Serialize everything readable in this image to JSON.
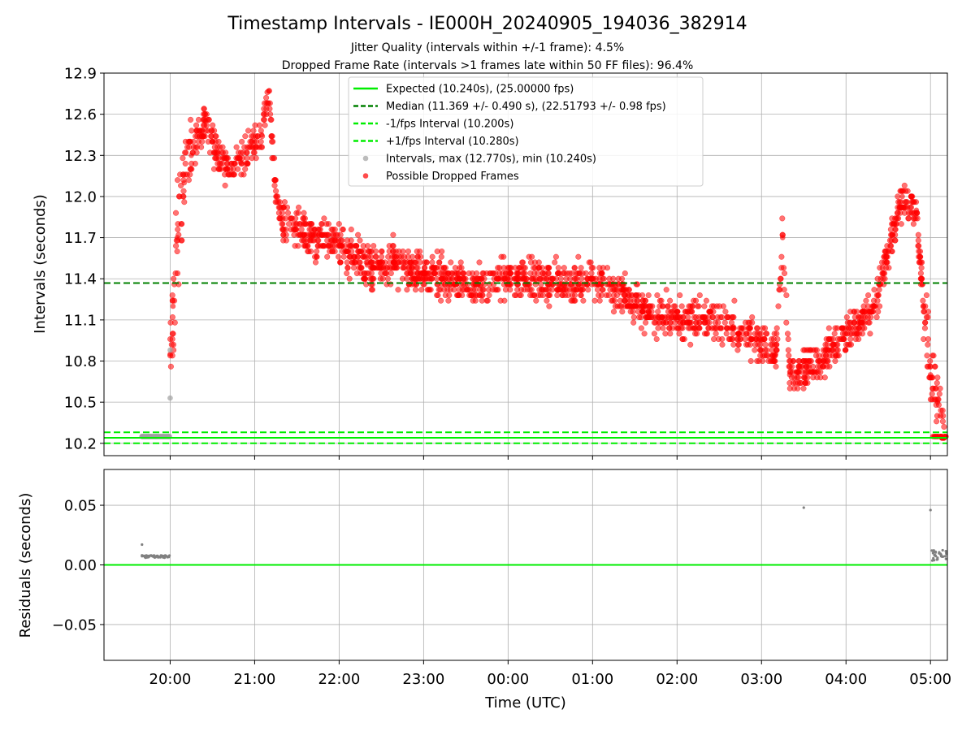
{
  "chart_data": {
    "type": "scatter",
    "title": "Timestamp Intervals - IE000H_20240905_194036_382914",
    "subtitle_1": "Jitter Quality (intervals within +/-1 frame): 4.5%",
    "subtitle_2": "Dropped Frame Rate (intervals >1 frames late within 50 FF files): 96.4%",
    "xlabel": "Time (UTC)",
    "x_ticks": [
      "20:00",
      "21:00",
      "22:00",
      "23:00",
      "00:00",
      "01:00",
      "02:00",
      "03:00",
      "04:00",
      "05:00"
    ],
    "x_range": [
      "2024-09-05 19:13",
      "2024-09-06 05:12"
    ],
    "grid": true,
    "panels": [
      {
        "name": "intervals",
        "ylabel": "Intervals (seconds)",
        "ylim": [
          10.11,
          12.9
        ],
        "y_ticks": [
          "10.2",
          "10.5",
          "10.8",
          "11.1",
          "11.4",
          "11.7",
          "12.0",
          "12.3",
          "12.6",
          "12.9"
        ],
        "legend_position": "top-center",
        "reference_lines": [
          {
            "label": "Expected (10.240s), (25.00000 fps)",
            "y": 10.24,
            "color": "#00ee00",
            "style": "solid"
          },
          {
            "label": "Median (11.369 +/- 0.490 s), (22.51793 +/- 0.98 fps)",
            "y": 11.369,
            "color": "#008000",
            "style": "dashed"
          },
          {
            "label": "-1/fps Interval (10.200s)",
            "y": 10.2,
            "color": "#00ee00",
            "style": "dashed"
          },
          {
            "label": "+1/fps Interval (10.280s)",
            "y": 10.28,
            "color": "#00ee00",
            "style": "dashed"
          }
        ],
        "series": [
          {
            "name": "Intervals, max (12.770s), min (10.240s)",
            "color": "#a0a0a0",
            "note": "normal intervals",
            "points": [
              [
                "19:40",
                10.25
              ],
              [
                "19:45",
                10.25
              ],
              [
                "19:50",
                10.25
              ],
              [
                "19:55",
                10.25
              ],
              [
                "19:59",
                10.25
              ],
              [
                "20:00",
                10.53
              ],
              [
                "20:00",
                10.88
              ]
            ]
          },
          {
            "name": "Possible Dropped Frames",
            "color": "#ff0000",
            "note": "dense cloud; representative trend samples",
            "points": [
              [
                "20:00",
                10.85
              ],
              [
                "20:02",
                11.2
              ],
              [
                "20:05",
                11.7
              ],
              [
                "20:10",
                12.1
              ],
              [
                "20:15",
                12.3
              ],
              [
                "20:25",
                12.55
              ],
              [
                "20:30",
                12.4
              ],
              [
                "20:40",
                12.2
              ],
              [
                "20:50",
                12.25
              ],
              [
                "21:00",
                12.4
              ],
              [
                "21:05",
                12.45
              ],
              [
                "21:10",
                12.77
              ],
              [
                "21:15",
                12.0
              ],
              [
                "21:20",
                11.8
              ],
              [
                "21:40",
                11.7
              ],
              [
                "22:00",
                11.65
              ],
              [
                "22:20",
                11.5
              ],
              [
                "22:40",
                11.5
              ],
              [
                "23:00",
                11.45
              ],
              [
                "23:20",
                11.4
              ],
              [
                "23:40",
                11.35
              ],
              [
                "00:00",
                11.4
              ],
              [
                "00:20",
                11.38
              ],
              [
                "00:40",
                11.35
              ],
              [
                "01:00",
                11.4
              ],
              [
                "01:20",
                11.3
              ],
              [
                "01:40",
                11.15
              ],
              [
                "02:00",
                11.1
              ],
              [
                "02:20",
                11.1
              ],
              [
                "02:40",
                11.05
              ],
              [
                "03:00",
                10.95
              ],
              [
                "03:10",
                10.85
              ],
              [
                "03:15",
                11.7
              ],
              [
                "03:20",
                10.7
              ],
              [
                "03:40",
                10.8
              ],
              [
                "04:00",
                11.0
              ],
              [
                "04:20",
                11.2
              ],
              [
                "04:30",
                11.6
              ],
              [
                "04:40",
                12.0
              ],
              [
                "04:50",
                11.9
              ],
              [
                "04:55",
                11.2
              ],
              [
                "05:00",
                10.7
              ],
              [
                "05:05",
                10.5
              ],
              [
                "05:10",
                10.25
              ]
            ]
          }
        ]
      },
      {
        "name": "residuals",
        "ylabel": "Residuals (seconds)",
        "ylim": [
          -0.08,
          0.08
        ],
        "y_ticks": [
          "0.05",
          "0.00",
          "−0.05"
        ],
        "reference_line": {
          "y": 0.0,
          "color": "#00ee00"
        },
        "series": [
          {
            "name": "residuals",
            "color": "#808080",
            "points": [
              [
                "19:40",
                0.017
              ],
              [
                "19:40",
                0.008
              ],
              [
                "19:45",
                0.007
              ],
              [
                "19:50",
                0.007
              ],
              [
                "19:55",
                0.007
              ],
              [
                "19:59",
                0.007
              ],
              [
                "03:30",
                0.048
              ],
              [
                "05:00",
                0.046
              ],
              [
                "05:01",
                0.012
              ],
              [
                "05:03",
                0.008
              ],
              [
                "05:05",
                0.006
              ],
              [
                "05:07",
                0.009
              ],
              [
                "05:09",
                0.007
              ],
              [
                "05:11",
                0.005
              ]
            ]
          }
        ]
      }
    ]
  }
}
